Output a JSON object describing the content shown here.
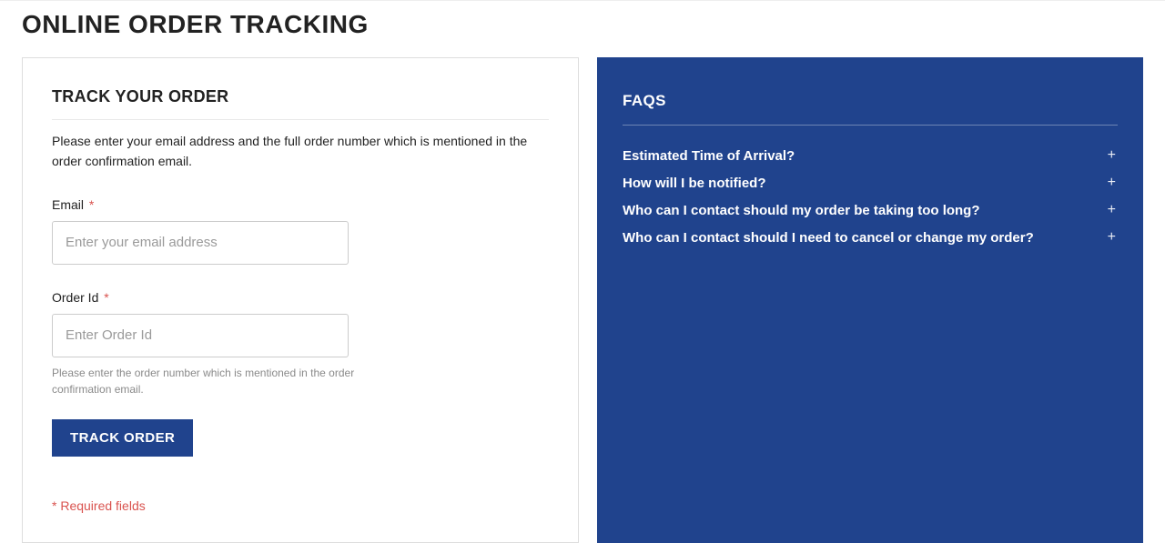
{
  "page": {
    "title": "ONLINE ORDER TRACKING"
  },
  "form_panel": {
    "heading": "TRACK YOUR ORDER",
    "intro": "Please enter your email address and the full order number which is mentioned in the order confirmation email.",
    "email": {
      "label": "Email",
      "required": "*",
      "placeholder": "Enter your email address"
    },
    "order_id": {
      "label": "Order Id",
      "required": "*",
      "placeholder": "Enter Order Id",
      "helper": "Please enter the order number which is mentioned in the order confirmation email."
    },
    "submit_label": "TRACK ORDER",
    "required_note": "* Required fields"
  },
  "faqs_panel": {
    "heading": "FAQS",
    "items": [
      {
        "question": "Estimated Time of Arrival?"
      },
      {
        "question": "How will I be notified?"
      },
      {
        "question": "Who can I contact should my order be taking too long?"
      },
      {
        "question": "Who can I contact should I need to cancel or change my order?"
      }
    ],
    "expand_icon": "+"
  },
  "colors": {
    "brand_blue": "#20438d",
    "required_red": "#d9534f",
    "border_gray": "#dddddd",
    "helper_gray": "#8a8a8a"
  }
}
